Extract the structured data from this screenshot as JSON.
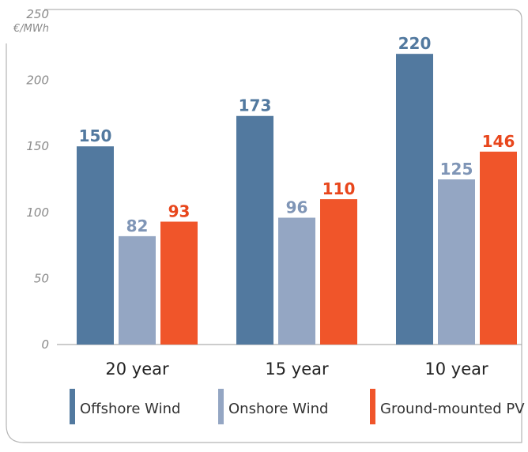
{
  "chart_data": {
    "type": "bar",
    "title": "",
    "xlabel": "",
    "ylabel": "€/MWh",
    "ylim": [
      0,
      250
    ],
    "yticks": [
      0,
      50,
      100,
      150,
      200,
      250
    ],
    "categories": [
      "20 year",
      "15 year",
      "10 year"
    ],
    "series": [
      {
        "name": "Offshore Wind",
        "values": [
          150,
          173,
          220
        ],
        "color": "#52799f",
        "label_color": "#52799f"
      },
      {
        "name": "Onshore Wind",
        "values": [
          82,
          96,
          125
        ],
        "color": "#94a6c3",
        "label_color": "#7f95b6"
      },
      {
        "name": "Ground-mounted PV",
        "values": [
          93,
          110,
          146
        ],
        "color": "#f0552a",
        "label_color": "#e8461c"
      }
    ],
    "grid": false,
    "legend_position": "bottom"
  }
}
